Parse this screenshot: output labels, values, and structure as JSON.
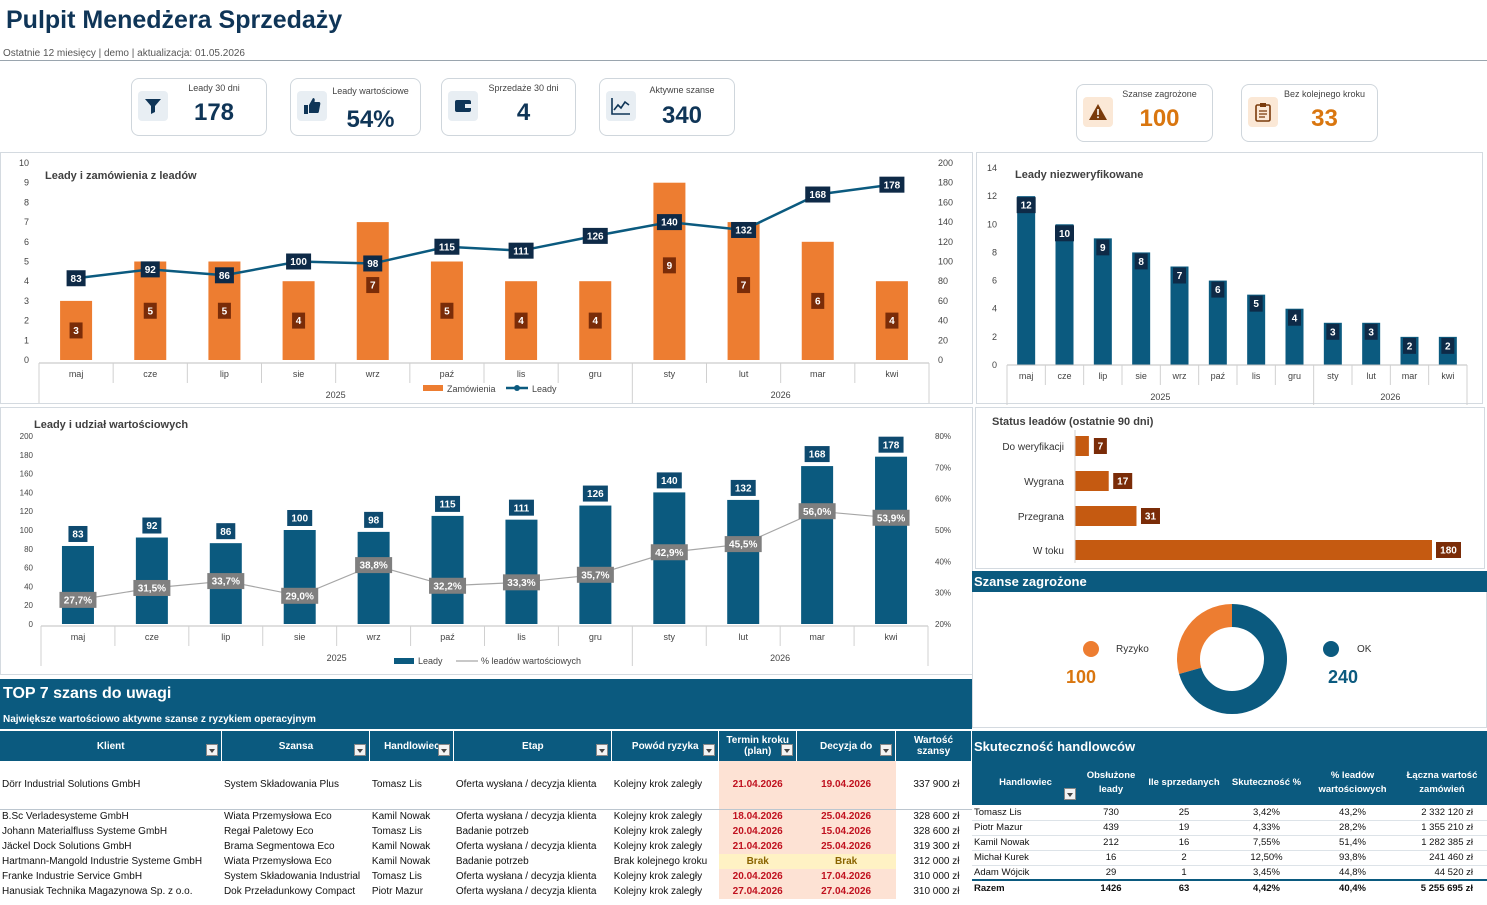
{
  "header": {
    "title": "Pulpit Menedżera Sprzedaży",
    "subtitle": "Ostatnie 12 miesięcy | demo | aktualizacja: 01.05.2026"
  },
  "kpis": [
    {
      "label": "Leady 30 dni",
      "value": "178",
      "icon": "funnel-icon"
    },
    {
      "label": "Leady wartościowe",
      "value": "54%",
      "icon": "thumbs-up-icon"
    },
    {
      "label": "Sprzedaże 30 dni",
      "value": "4",
      "icon": "wallet-icon"
    },
    {
      "label": "Aktywne szanse",
      "value": "340",
      "icon": "line-chart-icon"
    },
    {
      "label": "Szanse zagrożone",
      "value": "100",
      "icon": "warning-icon"
    },
    {
      "label": "Bez kolejnego kroku",
      "value": "33",
      "icon": "clipboard-icon"
    }
  ],
  "colors": {
    "navy": "#0b5a7f",
    "orange": "#ed7d31",
    "darkred": "#7a2c08",
    "rust": "#c55a11",
    "gray": "#7f7f7f"
  },
  "chart_data": [
    {
      "type": "bar",
      "title": "Leady i zamówienia z leadów",
      "categories": [
        "maj",
        "cze",
        "lip",
        "sie",
        "wrz",
        "paź",
        "lis",
        "gru",
        "sty",
        "lut",
        "mar",
        "kwi"
      ],
      "year_groups": [
        {
          "label": "2025",
          "from": 0,
          "to": 7
        },
        {
          "label": "2026",
          "from": 8,
          "to": 11
        }
      ],
      "series": [
        {
          "name": "Zamówienia",
          "values": [
            3,
            5,
            5,
            4,
            7,
            5,
            4,
            4,
            9,
            7,
            6,
            4
          ],
          "axis": "left"
        },
        {
          "name": "Leady",
          "values": [
            83,
            92,
            86,
            100,
            98,
            115,
            111,
            126,
            140,
            132,
            168,
            178
          ],
          "axis": "right",
          "kind": "line"
        }
      ],
      "ylim_left": [
        0,
        10
      ],
      "yticks_left": [
        0,
        1,
        2,
        3,
        4,
        5,
        6,
        7,
        8,
        9,
        10
      ],
      "ylim_right": [
        0,
        200
      ],
      "yticks_right": [
        0,
        20,
        40,
        60,
        80,
        100,
        120,
        140,
        160,
        180,
        200
      ],
      "legend": "bottom"
    },
    {
      "type": "bar",
      "title": "Leady niezweryfikowane",
      "categories": [
        "maj",
        "cze",
        "lip",
        "sie",
        "wrz",
        "paź",
        "lis",
        "gru",
        "sty",
        "lut",
        "mar",
        "kwi"
      ],
      "year_groups": [
        {
          "label": "2025",
          "from": 0,
          "to": 7
        },
        {
          "label": "2026",
          "from": 8,
          "to": 11
        }
      ],
      "values": [
        12,
        10,
        9,
        8,
        7,
        6,
        5,
        4,
        3,
        3,
        2,
        2
      ],
      "ylim": [
        0,
        14
      ],
      "yticks": [
        0,
        2,
        4,
        6,
        8,
        10,
        12,
        14
      ]
    },
    {
      "type": "bar",
      "title": "Leady i udział wartościowych",
      "categories": [
        "maj",
        "cze",
        "lip",
        "sie",
        "wrz",
        "paź",
        "lis",
        "gru",
        "sty",
        "lut",
        "mar",
        "kwi"
      ],
      "year_groups": [
        {
          "label": "2025",
          "from": 0,
          "to": 7
        },
        {
          "label": "2026",
          "from": 8,
          "to": 11
        }
      ],
      "series": [
        {
          "name": "Leady",
          "values": [
            83,
            92,
            86,
            100,
            98,
            115,
            111,
            126,
            140,
            132,
            168,
            178
          ],
          "axis": "left"
        },
        {
          "name": "% leadów wartościowych",
          "values": [
            27.7,
            31.5,
            33.7,
            29.0,
            38.8,
            32.2,
            33.3,
            35.7,
            42.9,
            45.5,
            56.0,
            53.9
          ],
          "labels": [
            "27,7%",
            "31,5%",
            "33,7%",
            "29,0%",
            "38,8%",
            "32,2%",
            "33,3%",
            "35,7%",
            "42,9%",
            "45,5%",
            "56,0%",
            "53,9%"
          ],
          "axis": "right",
          "kind": "line"
        }
      ],
      "ylim_left": [
        0,
        200
      ],
      "yticks_left": [
        0,
        20,
        40,
        60,
        80,
        100,
        120,
        140,
        160,
        180,
        200
      ],
      "ylim_right": [
        20,
        80
      ],
      "yticks_right": [
        "20%",
        "30%",
        "40%",
        "50%",
        "60%",
        "70%",
        "80%"
      ],
      "legend": "bottom"
    },
    {
      "type": "bar",
      "title": "Status leadów (ostatnie 90 dni)",
      "orientation": "horizontal",
      "categories": [
        "Do weryfikacji",
        "Wygrana",
        "Przegrana",
        "W toku"
      ],
      "values": [
        7,
        17,
        31,
        180
      ]
    },
    {
      "type": "pie",
      "title": "Szanse zagrożone",
      "slices": [
        {
          "name": "Ryzyko",
          "value": 100,
          "color": "#ed7d31"
        },
        {
          "name": "OK",
          "value": 240,
          "color": "#0b5a7f"
        }
      ]
    }
  ],
  "top7": {
    "title": "TOP 7 szans do uwagi",
    "subtitle": "Największe wartościowo aktywne szanse z ryzykiem operacyjnym",
    "headers": [
      "Klient",
      "Szansa",
      "Handlowiec",
      "Etap",
      "Powód ryzyka",
      "Termin kroku (plan)",
      "Decyzja do",
      "Wartość szansy"
    ],
    "rows": [
      [
        "Dörr Industrial Solutions GmbH",
        "System Składowania Plus",
        "Tomasz Lis",
        "Oferta wysłana / decyzja klienta",
        "Kolejny krok zaległy",
        "21.04.2026",
        "19.04.2026",
        "337 900 zł"
      ],
      [
        "B.Sc Verladesysteme GmbH",
        "Wiata Przemysłowa Eco",
        "Kamil Nowak",
        "Oferta wysłana / decyzja klienta",
        "Kolejny krok zaległy",
        "18.04.2026",
        "25.04.2026",
        "328 600 zł"
      ],
      [
        "Johann Materialfluss Systeme GmbH",
        "Regał Paletowy Eco",
        "Tomasz Lis",
        "Badanie potrzeb",
        "Kolejny krok zaległy",
        "20.04.2026",
        "15.04.2026",
        "328 600 zł"
      ],
      [
        "Jäckel Dock Solutions GmbH",
        "Brama Segmentowa Eco",
        "Kamil Nowak",
        "Oferta wysłana / decyzja klienta",
        "Kolejny krok zaległy",
        "21.04.2026",
        "25.04.2026",
        "319 300 zł"
      ],
      [
        "Hartmann-Mangold Industrie Systeme GmbH",
        "Wiata Przemysłowa Eco",
        "Kamil Nowak",
        "Badanie potrzeb",
        "Brak kolejnego kroku",
        "Brak",
        "Brak",
        "312 000 zł"
      ],
      [
        "Franke Industrie Service GmbH",
        "System Składowania Industrial",
        "Tomasz Lis",
        "Oferta wysłana / decyzja klienta",
        "Kolejny krok zaległy",
        "20.04.2026",
        "17.04.2026",
        "310 000 zł"
      ],
      [
        "Hanusiak Technika Magazynowa Sp. z o.o.",
        "Dok Przeładunkowy Compact",
        "Piotr Mazur",
        "Oferta wysłana / decyzja klienta",
        "Kolejny krok zaległy",
        "27.04.2026",
        "27.04.2026",
        "310 000 zł"
      ]
    ]
  },
  "sales_reps": {
    "title": "Skuteczność handlowców",
    "headers": [
      "Handlowiec",
      "Obsłużone leady",
      "Ile sprzedanych",
      "Skuteczność %",
      "% leadów wartościowych",
      "Łączna wartość zamówień"
    ],
    "rows": [
      [
        "Tomasz Lis",
        "730",
        "25",
        "3,42%",
        "43,2%",
        "2 332 120 zł"
      ],
      [
        "Piotr Mazur",
        "439",
        "19",
        "4,33%",
        "28,2%",
        "1 355 210 zł"
      ],
      [
        "Kamil Nowak",
        "212",
        "16",
        "7,55%",
        "51,4%",
        "1 282 385 zł"
      ],
      [
        "Michał Kurek",
        "16",
        "2",
        "12,50%",
        "93,8%",
        "241 460 zł"
      ],
      [
        "Adam Wójcik",
        "29",
        "1",
        "3,45%",
        "44,8%",
        "44 520 zł"
      ]
    ],
    "total": [
      "Razem",
      "1426",
      "63",
      "4,42%",
      "40,4%",
      "5 255 695 zł"
    ]
  }
}
